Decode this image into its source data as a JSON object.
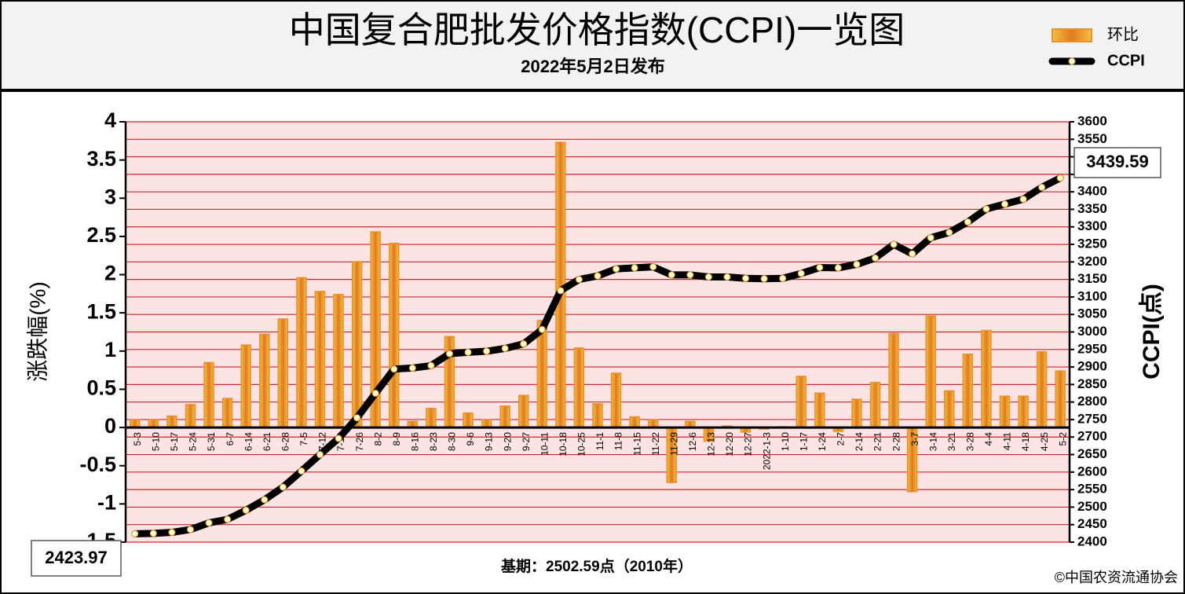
{
  "chart_data": {
    "type": "bar",
    "title": "中国复合肥批发价格指数(CCPI)一览图",
    "subtitle": "2022年5月2日发布",
    "ylabel": "涨跌幅(%)",
    "y2label": "CCPI(点)",
    "footnote": "基期：2502.59点（2010年）",
    "source": "©中国农资流通协会",
    "categories": [
      "5-3",
      "5-10",
      "5-17",
      "5-24",
      "5-31",
      "6-7",
      "6-14",
      "6-21",
      "6-28",
      "7-5",
      "7-12",
      "7-19",
      "7-26",
      "8-2",
      "8-9",
      "8-16",
      "8-23",
      "8-30",
      "9-6",
      "9-13",
      "9-20",
      "9-27",
      "10-11",
      "10-18",
      "10-25",
      "11-1",
      "11-8",
      "11-15",
      "11-22",
      "11-29",
      "12-6",
      "12-13",
      "12-20",
      "12-27",
      "2022-1-3",
      "1-10",
      "1-17",
      "1-24",
      "2-7",
      "2-14",
      "2-21",
      "2-28",
      "3-7",
      "3-14",
      "3-21",
      "3-28",
      "4-4",
      "4-11",
      "4-18",
      "4-25",
      "5-2"
    ],
    "series": [
      {
        "name": "环比",
        "type": "bar",
        "axis": "y",
        "color": "#e8902a",
        "values": [
          0.1,
          0.1,
          0.15,
          0.3,
          0.85,
          0.38,
          1.08,
          1.22,
          1.42,
          1.96,
          1.78,
          1.74,
          2.17,
          2.56,
          2.41,
          0.08,
          0.25,
          1.19,
          0.19,
          0.1,
          0.28,
          0.42,
          1.4,
          3.73,
          1.04,
          0.31,
          0.71,
          0.14,
          0.1,
          -0.72,
          0.08,
          -0.18,
          0.02,
          -0.06,
          -0.02,
          0.01,
          0.67,
          0.45,
          -0.05,
          0.37,
          0.59,
          1.23,
          -0.84,
          1.46,
          0.48,
          0.96,
          1.27,
          0.41,
          0.41,
          0.99,
          0.74
        ]
      },
      {
        "name": "CCPI",
        "type": "line",
        "axis": "y2",
        "color": "#000000",
        "values": [
          2423.97,
          2425,
          2428,
          2436,
          2455,
          2465,
          2491,
          2521,
          2557,
          2603,
          2650,
          2696,
          2755,
          2825,
          2894,
          2897,
          2904,
          2938,
          2942,
          2945,
          2953,
          2966,
          3007,
          3118,
          3150,
          3160,
          3180,
          3183,
          3186,
          3163,
          3163,
          3157,
          3157,
          3153,
          3152,
          3153,
          3167,
          3184,
          3183,
          3193,
          3211,
          3250,
          3223,
          3269,
          3284,
          3314,
          3351,
          3365,
          3379,
          3413,
          3439.59
        ]
      }
    ],
    "ylim": [
      -1.5,
      4
    ],
    "yticks": [
      -1.5,
      -1,
      -0.5,
      0,
      0.5,
      1,
      1.5,
      2,
      2.5,
      3,
      3.5,
      4
    ],
    "y2lim": [
      2400,
      3600
    ],
    "y2ticks": [
      2400,
      2450,
      2500,
      2550,
      2600,
      2650,
      2700,
      2750,
      2800,
      2850,
      2900,
      2950,
      3000,
      3050,
      3100,
      3150,
      3200,
      3250,
      3300,
      3350,
      3400,
      3450,
      3500,
      3550,
      3600
    ],
    "grid": true,
    "legend": "top-right"
  }
}
